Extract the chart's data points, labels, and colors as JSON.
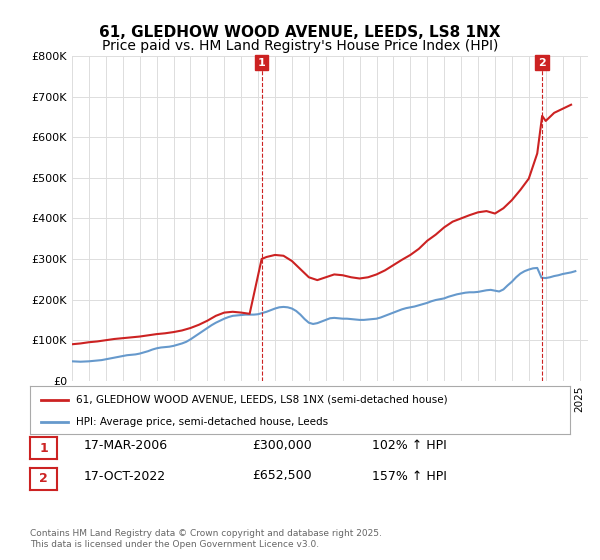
{
  "title": "61, GLEDHOW WOOD AVENUE, LEEDS, LS8 1NX",
  "subtitle": "Price paid vs. HM Land Registry's House Price Index (HPI)",
  "ylabel_ticks": [
    "£0",
    "£100K",
    "£200K",
    "£300K",
    "£400K",
    "£500K",
    "£600K",
    "£700K",
    "£800K"
  ],
  "ytick_values": [
    0,
    100000,
    200000,
    300000,
    400000,
    500000,
    600000,
    700000,
    800000
  ],
  "ylim": [
    0,
    800000
  ],
  "xlim_start": 1995.0,
  "xlim_end": 2025.5,
  "hpi_line_color": "#6699cc",
  "price_line_color": "#cc2222",
  "annotation_box_color": "#cc2222",
  "sale1": {
    "label": "1",
    "date_str": "17-MAR-2006",
    "date_x": 2006.21,
    "price": 300000,
    "pct_text": "102% ↑ HPI"
  },
  "sale2": {
    "label": "2",
    "date_str": "17-OCT-2022",
    "date_x": 2022.79,
    "price": 652500,
    "pct_text": "157% ↑ HPI"
  },
  "legend_line1": "61, GLEDHOW WOOD AVENUE, LEEDS, LS8 1NX (semi-detached house)",
  "legend_line2": "HPI: Average price, semi-detached house, Leeds",
  "footer": "Contains HM Land Registry data © Crown copyright and database right 2025.\nThis data is licensed under the Open Government Licence v3.0.",
  "hpi_data": {
    "x": [
      1995.0,
      1995.25,
      1995.5,
      1995.75,
      1996.0,
      1996.25,
      1996.5,
      1996.75,
      1997.0,
      1997.25,
      1997.5,
      1997.75,
      1998.0,
      1998.25,
      1998.5,
      1998.75,
      1999.0,
      1999.25,
      1999.5,
      1999.75,
      2000.0,
      2000.25,
      2000.5,
      2000.75,
      2001.0,
      2001.25,
      2001.5,
      2001.75,
      2002.0,
      2002.25,
      2002.5,
      2002.75,
      2003.0,
      2003.25,
      2003.5,
      2003.75,
      2004.0,
      2004.25,
      2004.5,
      2004.75,
      2005.0,
      2005.25,
      2005.5,
      2005.75,
      2006.0,
      2006.25,
      2006.5,
      2006.75,
      2007.0,
      2007.25,
      2007.5,
      2007.75,
      2008.0,
      2008.25,
      2008.5,
      2008.75,
      2009.0,
      2009.25,
      2009.5,
      2009.75,
      2010.0,
      2010.25,
      2010.5,
      2010.75,
      2011.0,
      2011.25,
      2011.5,
      2011.75,
      2012.0,
      2012.25,
      2012.5,
      2012.75,
      2013.0,
      2013.25,
      2013.5,
      2013.75,
      2014.0,
      2014.25,
      2014.5,
      2014.75,
      2015.0,
      2015.25,
      2015.5,
      2015.75,
      2016.0,
      2016.25,
      2016.5,
      2016.75,
      2017.0,
      2017.25,
      2017.5,
      2017.75,
      2018.0,
      2018.25,
      2018.5,
      2018.75,
      2019.0,
      2019.25,
      2019.5,
      2019.75,
      2020.0,
      2020.25,
      2020.5,
      2020.75,
      2021.0,
      2021.25,
      2021.5,
      2021.75,
      2022.0,
      2022.25,
      2022.5,
      2022.75,
      2023.0,
      2023.25,
      2023.5,
      2023.75,
      2024.0,
      2024.25,
      2024.5,
      2024.75
    ],
    "y": [
      48000,
      47500,
      47000,
      47500,
      48000,
      49000,
      50000,
      51000,
      53000,
      55000,
      57000,
      59000,
      61000,
      63000,
      64000,
      65000,
      67000,
      70000,
      73000,
      77000,
      80000,
      82000,
      83000,
      84000,
      86000,
      89000,
      92000,
      96000,
      102000,
      109000,
      116000,
      123000,
      130000,
      137000,
      143000,
      148000,
      153000,
      157000,
      160000,
      161000,
      162000,
      163000,
      163000,
      163000,
      164000,
      167000,
      170000,
      174000,
      178000,
      181000,
      182000,
      181000,
      178000,
      172000,
      163000,
      152000,
      143000,
      140000,
      142000,
      146000,
      150000,
      154000,
      155000,
      154000,
      153000,
      153000,
      152000,
      151000,
      150000,
      150000,
      151000,
      152000,
      153000,
      156000,
      160000,
      164000,
      168000,
      172000,
      176000,
      179000,
      181000,
      183000,
      186000,
      189000,
      192000,
      196000,
      199000,
      201000,
      203000,
      207000,
      210000,
      213000,
      215000,
      217000,
      218000,
      218000,
      219000,
      221000,
      223000,
      224000,
      222000,
      220000,
      225000,
      235000,
      244000,
      255000,
      264000,
      270000,
      274000,
      277000,
      278000,
      254000,
      253000,
      255000,
      258000,
      260000,
      263000,
      265000,
      267000,
      270000
    ]
  },
  "price_data": {
    "x": [
      1995.0,
      1995.5,
      1996.0,
      1996.5,
      1997.0,
      1997.5,
      1998.0,
      1998.5,
      1999.0,
      1999.5,
      2000.0,
      2000.5,
      2001.0,
      2001.5,
      2002.0,
      2002.5,
      2003.0,
      2003.5,
      2004.0,
      2004.5,
      2005.0,
      2005.5,
      2006.21,
      2006.5,
      2007.0,
      2007.5,
      2008.0,
      2008.5,
      2009.0,
      2009.5,
      2010.0,
      2010.5,
      2011.0,
      2011.5,
      2012.0,
      2012.5,
      2013.0,
      2013.5,
      2014.0,
      2014.5,
      2015.0,
      2015.5,
      2016.0,
      2016.5,
      2017.0,
      2017.5,
      2018.0,
      2018.5,
      2019.0,
      2019.5,
      2020.0,
      2020.5,
      2021.0,
      2021.5,
      2022.0,
      2022.5,
      2022.79,
      2023.0,
      2023.5,
      2024.0,
      2024.5
    ],
    "y": [
      90000,
      92000,
      95000,
      97000,
      100000,
      103000,
      105000,
      107000,
      109000,
      112000,
      115000,
      117000,
      120000,
      124000,
      130000,
      138000,
      148000,
      160000,
      168000,
      170000,
      168000,
      165000,
      300000,
      305000,
      310000,
      308000,
      295000,
      275000,
      255000,
      248000,
      255000,
      262000,
      260000,
      255000,
      252000,
      255000,
      262000,
      272000,
      285000,
      298000,
      310000,
      325000,
      345000,
      360000,
      378000,
      392000,
      400000,
      408000,
      415000,
      418000,
      412000,
      425000,
      445000,
      470000,
      498000,
      560000,
      652500,
      640000,
      660000,
      670000,
      680000
    ]
  },
  "background_color": "#ffffff",
  "grid_color": "#dddddd",
  "title_fontsize": 11,
  "subtitle_fontsize": 10
}
